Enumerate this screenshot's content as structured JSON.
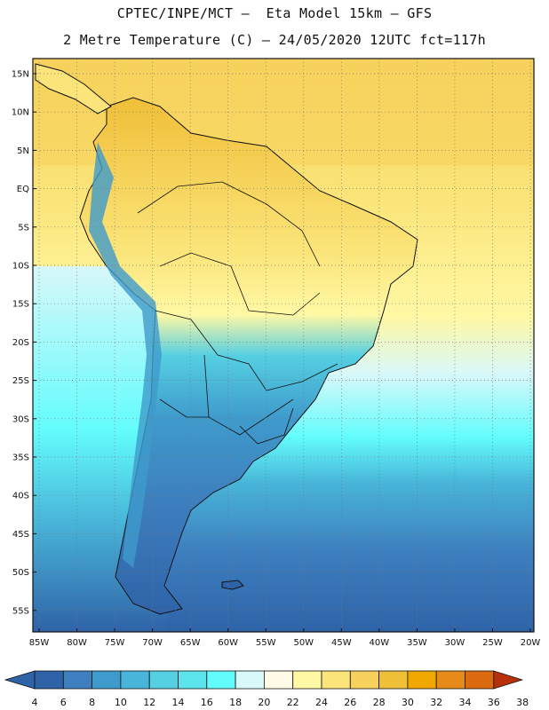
{
  "header": {
    "line1": "CPTEC/INPE/MCT –  Eta Model 15km – GFS",
    "line2": "2 Metre Temperature (C) – 24/05/2020 12UTC fct=117h"
  },
  "map": {
    "lat_labels": [
      "15N",
      "10N",
      "5N",
      "EQ",
      "5S",
      "10S",
      "15S",
      "20S",
      "25S",
      "30S",
      "35S",
      "40S",
      "45S",
      "50S",
      "55S"
    ],
    "lon_labels": [
      "85W",
      "80W",
      "75W",
      "70W",
      "65W",
      "60W",
      "55W",
      "50W",
      "45W",
      "40W",
      "35W",
      "30W",
      "25W",
      "20W"
    ]
  },
  "colorbar": {
    "levels": [
      "4",
      "6",
      "8",
      "10",
      "12",
      "14",
      "16",
      "18",
      "20",
      "22",
      "24",
      "26",
      "28",
      "30",
      "32",
      "34",
      "36",
      "38"
    ],
    "colors": [
      "#2f63a8",
      "#3d7fbf",
      "#3f9bcc",
      "#48b5d9",
      "#55cfe2",
      "#5ce4ec",
      "#63fcfc",
      "#d8f8fa",
      "#fffbe6",
      "#fff8a4",
      "#fbe57a",
      "#f6d25c",
      "#f0bf38",
      "#f0a800",
      "#e68a1a",
      "#dc6a0e",
      "#c84a0a",
      "#b8300a"
    ]
  }
}
